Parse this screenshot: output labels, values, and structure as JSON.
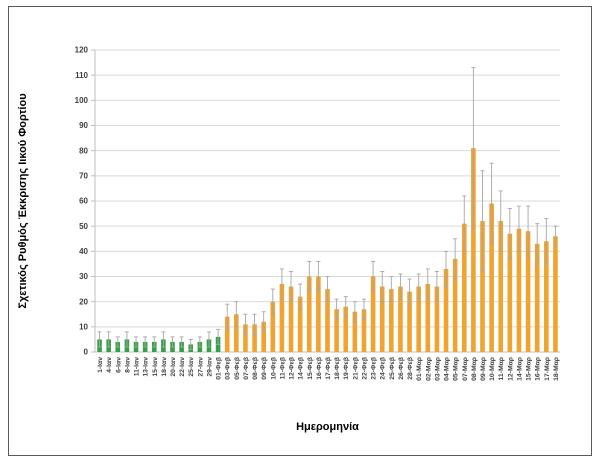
{
  "chart_data": {
    "type": "bar",
    "title": "",
    "xlabel": "Ημερομηνία",
    "ylabel": "Σχετικός Ρυθμός Έκκρισης Ιικού Φορτίου",
    "ylim": [
      0,
      120
    ],
    "ytick_step": 10,
    "grid": true,
    "legend": "none",
    "error_bars": true,
    "green_count": 14,
    "colors": {
      "green": "#35a047",
      "orange": "#f0a32f",
      "error": "#a6a6a6",
      "gridline": "#d9d9d9",
      "axis": "#bfbfbf",
      "tick_text": "#404040"
    },
    "categories": [
      "1-Ιαν",
      "4-Ιαν",
      "6-Ιαν",
      "8-Ιαν",
      "11-Ιαν",
      "13-Ιαν",
      "15-Ιαν",
      "18-Ιαν",
      "20-Ιαν",
      "22-Ιαν",
      "25-Ιαν",
      "27-Ιαν",
      "29-Ιαν",
      "01-Φεβ",
      "03-Φεβ",
      "05-Φεβ",
      "07-Φεβ",
      "08-Φεβ",
      "09-Φεβ",
      "10-Φεβ",
      "11-Φεβ",
      "12-Φεβ",
      "14-Φεβ",
      "15-Φεβ",
      "16-Φεβ",
      "17-Φεβ",
      "18-Φεβ",
      "19-Φεβ",
      "21-Φεβ",
      "22-Φεβ",
      "23-Φεβ",
      "24-Φεβ",
      "25-Φεβ",
      "26-Φεβ",
      "28-Φεβ",
      "01-Μαρ",
      "02-Μαρ",
      "03-Μαρ",
      "04-Μαρ",
      "05-Μαρ",
      "07-Μαρ",
      "08-Μαρ",
      "09-Μαρ",
      "10-Μαρ",
      "11-Μαρ",
      "12-Μαρ",
      "14-Μαρ",
      "15-Μαρ",
      "16-Μαρ",
      "17-Μαρ",
      "18-Μαρ"
    ],
    "values": [
      5,
      5,
      4,
      5,
      4,
      4,
      4,
      5,
      4,
      4,
      3,
      4,
      5,
      6,
      14,
      15,
      11,
      11,
      12,
      20,
      27,
      26,
      22,
      30,
      30,
      25,
      17,
      18,
      16,
      17,
      30,
      26,
      25,
      26,
      24,
      26,
      27,
      26,
      33,
      37,
      51,
      81,
      52,
      59,
      52,
      47,
      49,
      48,
      43,
      44,
      46
    ],
    "errors": [
      3,
      3,
      2,
      3,
      2,
      2,
      2,
      3,
      2,
      2,
      2,
      2,
      3,
      3,
      5,
      5,
      4,
      4,
      4,
      5,
      6,
      6,
      5,
      6,
      6,
      5,
      4,
      4,
      4,
      4,
      6,
      6,
      5,
      5,
      5,
      5,
      6,
      6,
      7,
      8,
      11,
      32,
      20,
      16,
      12,
      10,
      9,
      10,
      8,
      9,
      4
    ]
  }
}
